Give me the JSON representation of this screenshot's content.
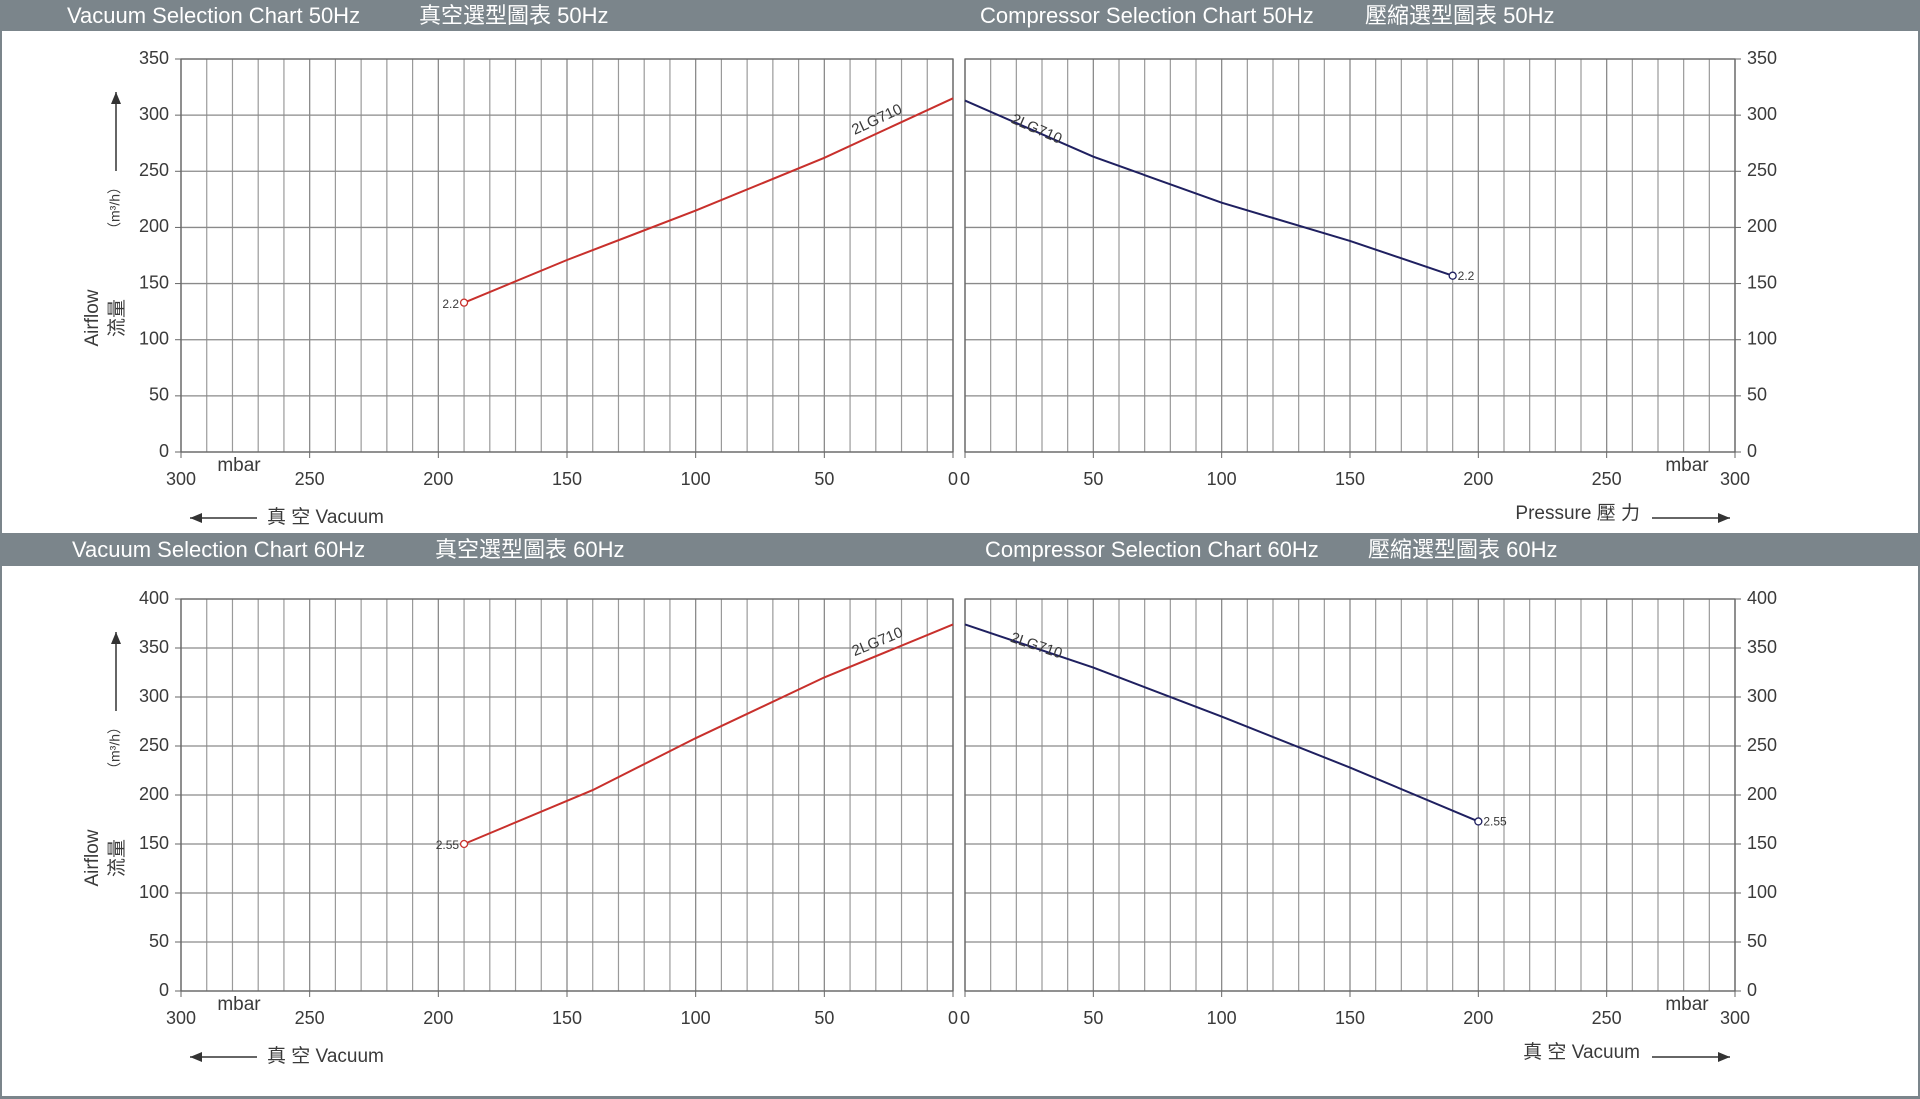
{
  "chart_data": [
    {
      "type": "line",
      "title": "Vacuum Selection Chart 50Hz",
      "title_zh": "真空選型圖表 50Hz",
      "x_label": "mbar",
      "direction_label": "真 空 Vacuum",
      "y_label": "Airflow",
      "y_label_zh": "流量",
      "y_unit": "（m³/h）",
      "xlim": [
        300,
        0
      ],
      "xticks": [
        300,
        250,
        200,
        150,
        100,
        50,
        0
      ],
      "ylim": [
        0,
        350
      ],
      "yticks": [
        0,
        50,
        100,
        150,
        200,
        250,
        300,
        350
      ],
      "grid": true,
      "series": [
        {
          "name": "2LG710",
          "color": "#c8302c",
          "x": [
            190,
            150,
            100,
            50,
            0
          ],
          "values": [
            133,
            171,
            215,
            262,
            315
          ],
          "point_label": "2.2"
        }
      ]
    },
    {
      "type": "line",
      "title": "Compressor Selection Chart 50Hz",
      "title_zh": "壓縮選型圖表 50Hz",
      "x_label": "mbar",
      "direction_label": "Pressure 壓 力",
      "xlim": [
        0,
        300
      ],
      "xticks": [
        0,
        50,
        100,
        150,
        200,
        250,
        300
      ],
      "ylim": [
        0,
        350
      ],
      "yticks": [
        0,
        50,
        100,
        150,
        200,
        250,
        300,
        350
      ],
      "grid": true,
      "series": [
        {
          "name": "2LG710",
          "color": "#1f2060",
          "x": [
            0,
            50,
            100,
            150,
            190
          ],
          "values": [
            313,
            263,
            222,
            188,
            157
          ],
          "point_label": "2.2"
        }
      ]
    },
    {
      "type": "line",
      "title": "Vacuum Selection Chart 60Hz",
      "title_zh": "真空選型圖表 60Hz",
      "x_label": "mbar",
      "direction_label": "真 空 Vacuum",
      "y_label": "Airflow",
      "y_label_zh": "流量",
      "y_unit": "（m³/h）",
      "xlim": [
        300,
        0
      ],
      "xticks": [
        300,
        250,
        200,
        150,
        100,
        50,
        0
      ],
      "ylim": [
        0,
        400
      ],
      "yticks": [
        0,
        50,
        100,
        150,
        200,
        250,
        300,
        350,
        400
      ],
      "grid": true,
      "series": [
        {
          "name": "2LG710",
          "color": "#c8302c",
          "x": [
            190,
            140,
            100,
            50,
            0
          ],
          "values": [
            150,
            205,
            258,
            320,
            374
          ],
          "point_label": "2.55"
        }
      ]
    },
    {
      "type": "line",
      "title": "Compressor Selection Chart 60Hz",
      "title_zh": "壓縮選型圖表 60Hz",
      "x_label": "mbar",
      "direction_label": "真 空 Vacuum",
      "xlim": [
        0,
        300
      ],
      "xticks": [
        0,
        50,
        100,
        150,
        200,
        250,
        300
      ],
      "ylim": [
        0,
        400
      ],
      "yticks": [
        0,
        50,
        100,
        150,
        200,
        250,
        300,
        350,
        400
      ],
      "grid": true,
      "series": [
        {
          "name": "2LG710",
          "color": "#1f2060",
          "x": [
            0,
            50,
            100,
            150,
            200
          ],
          "values": [
            374,
            330,
            280,
            228,
            173
          ],
          "point_label": "2.55"
        }
      ]
    }
  ]
}
